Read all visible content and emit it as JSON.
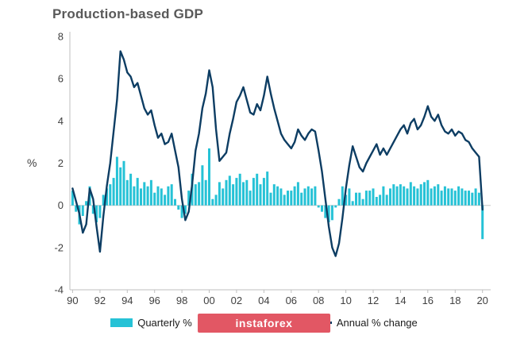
{
  "title": "Production-based GDP",
  "y_axis_label": "%",
  "watermark": {
    "text": "instaforex",
    "bg": "#e25764"
  },
  "legend": {
    "quarterly": "Quarterly %",
    "annual": "Annual % change"
  },
  "colors": {
    "bar": "#26c2d6",
    "line": "#0d3d63",
    "axis": "#bfbfbf",
    "zero_line": "#c9c9c9",
    "tick_text": "#404040",
    "title": "#595959"
  },
  "chart_data": {
    "type": "bar+line",
    "x_start": 1990,
    "x_step": 0.25,
    "x_range": [
      1989.8,
      2020.6
    ],
    "ylim": [
      -4,
      8
    ],
    "y_ticks": [
      8,
      6,
      4,
      2,
      0,
      -2,
      -4
    ],
    "x_tick_years": [
      1990,
      1992,
      1994,
      1996,
      1998,
      2000,
      2002,
      2004,
      2006,
      2008,
      2010,
      2012,
      2014,
      2016,
      2018,
      2020
    ],
    "x_tick_labels": [
      "90",
      "92",
      "94",
      "96",
      "98",
      "00",
      "02",
      "04",
      "06",
      "08",
      "10",
      "12",
      "14",
      "16",
      "18",
      "20"
    ],
    "series": [
      {
        "name": "Quarterly %",
        "type": "bar",
        "values": [
          0.7,
          -0.3,
          -0.9,
          -0.5,
          0.2,
          0.9,
          -0.4,
          -0.8,
          -0.6,
          0.5,
          0.8,
          1.0,
          1.3,
          2.3,
          1.8,
          2.1,
          1.2,
          1.5,
          0.9,
          1.3,
          0.8,
          1.1,
          0.9,
          1.2,
          0.6,
          0.9,
          0.8,
          0.5,
          0.9,
          1.0,
          0.3,
          -0.2,
          -0.6,
          -0.4,
          0.7,
          1.5,
          1.0,
          1.1,
          1.9,
          1.2,
          2.7,
          0.3,
          0.5,
          1.1,
          0.8,
          1.2,
          1.4,
          1.0,
          1.3,
          1.5,
          1.1,
          1.2,
          0.7,
          1.3,
          1.5,
          1.0,
          1.3,
          1.6,
          0.6,
          1.0,
          0.9,
          0.8,
          0.5,
          0.7,
          0.7,
          0.9,
          1.1,
          0.6,
          0.8,
          0.9,
          0.8,
          0.9,
          -0.1,
          -0.3,
          -0.6,
          -0.8,
          -0.7,
          -0.1,
          0.3,
          0.9,
          0.5,
          0.8,
          0.2,
          0.6,
          0.6,
          0.3,
          0.7,
          0.7,
          0.8,
          0.4,
          0.5,
          0.9,
          0.5,
          0.8,
          1.0,
          0.9,
          1.0,
          0.9,
          0.8,
          1.1,
          0.9,
          0.8,
          1.0,
          1.1,
          1.2,
          0.8,
          0.9,
          1.0,
          0.7,
          0.9,
          0.8,
          0.8,
          0.7,
          0.9,
          0.8,
          0.7,
          0.7,
          0.6,
          0.8,
          0.6,
          -1.6
        ]
      },
      {
        "name": "Annual % change",
        "type": "line",
        "values": [
          0.8,
          0.2,
          -0.4,
          -1.3,
          -0.9,
          0.8,
          0.3,
          -1.0,
          -2.2,
          -0.5,
          0.9,
          2.0,
          3.5,
          5.0,
          7.3,
          6.9,
          6.3,
          6.1,
          5.6,
          5.8,
          5.2,
          4.6,
          4.3,
          4.5,
          3.8,
          3.2,
          3.4,
          2.9,
          3.0,
          3.4,
          2.6,
          1.8,
          0.3,
          -0.7,
          -0.3,
          1.0,
          2.6,
          3.4,
          4.6,
          5.3,
          6.4,
          5.6,
          3.6,
          2.1,
          2.3,
          2.5,
          3.4,
          4.1,
          4.9,
          5.2,
          5.6,
          5.0,
          4.4,
          4.3,
          4.8,
          4.5,
          5.2,
          6.1,
          5.3,
          4.6,
          4.0,
          3.4,
          3.1,
          2.9,
          2.7,
          3.0,
          3.6,
          3.3,
          3.1,
          3.4,
          3.6,
          3.5,
          2.6,
          1.6,
          0.3,
          -1.0,
          -2.0,
          -2.4,
          -1.8,
          -0.6,
          0.8,
          1.9,
          2.8,
          2.3,
          1.8,
          1.6,
          2.0,
          2.3,
          2.6,
          2.9,
          2.4,
          2.7,
          2.4,
          2.7,
          3.0,
          3.3,
          3.6,
          3.8,
          3.4,
          3.9,
          4.1,
          3.6,
          3.8,
          4.2,
          4.7,
          4.2,
          4.0,
          4.3,
          3.8,
          3.5,
          3.4,
          3.6,
          3.3,
          3.5,
          3.4,
          3.1,
          3.0,
          2.7,
          2.5,
          2.3,
          -0.2
        ]
      }
    ]
  }
}
